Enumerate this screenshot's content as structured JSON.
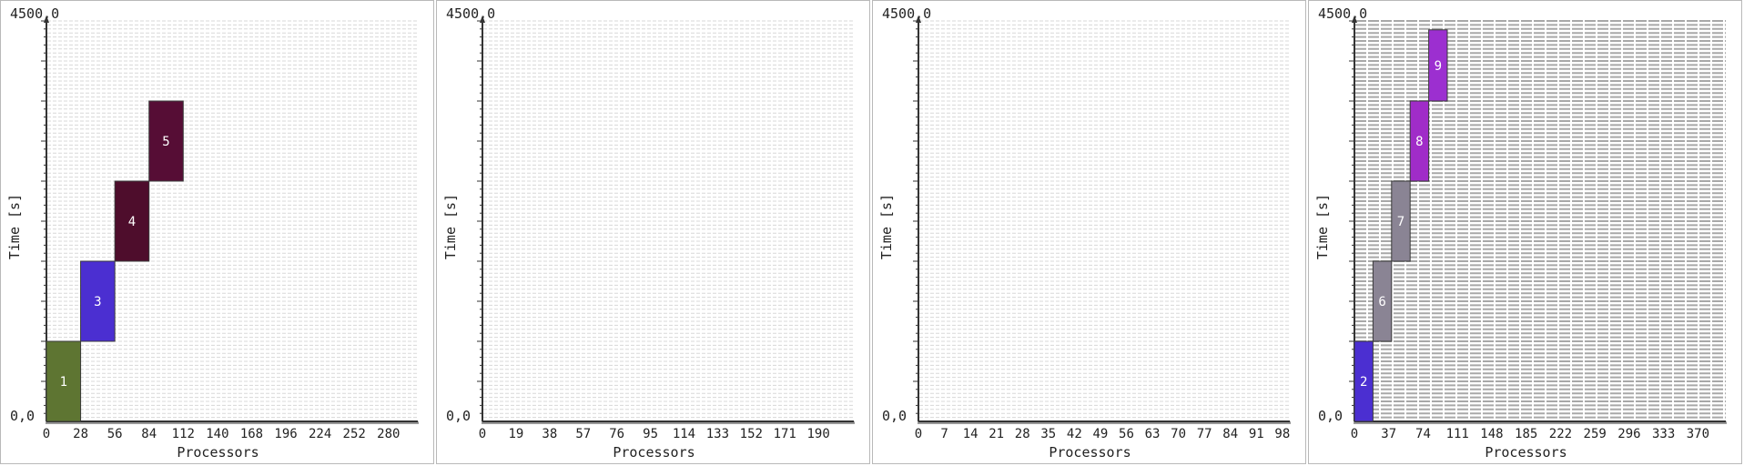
{
  "chart_data": [
    {
      "type": "bar",
      "chart_kind": "gantt",
      "ylabel": "Time [s]",
      "xlabel": "Processors",
      "ylim": [
        0,
        4500
      ],
      "ymax_label": "4500,0",
      "ymin_label": "0,0",
      "xlim": [
        0,
        304
      ],
      "xticks": [
        0,
        28,
        56,
        84,
        112,
        140,
        168,
        196,
        224,
        252,
        280
      ],
      "grid_style": "light-dashed",
      "jobs": [
        {
          "label": "1",
          "x0": 0,
          "x1": 28,
          "y0": 0,
          "y1": 900,
          "color": "#5e7532"
        },
        {
          "label": "3",
          "x0": 28,
          "x1": 56,
          "y0": 900,
          "y1": 1800,
          "color": "#4b2fd1"
        },
        {
          "label": "4",
          "x0": 56,
          "x1": 84,
          "y0": 1800,
          "y1": 2700,
          "color": "#4e0d2c"
        },
        {
          "label": "5",
          "x0": 84,
          "x1": 112,
          "y0": 2700,
          "y1": 3600,
          "color": "#560d35"
        }
      ]
    },
    {
      "type": "bar",
      "chart_kind": "gantt",
      "ylabel": "Time [s]",
      "xlabel": "Processors",
      "ylim": [
        0,
        4500
      ],
      "ymax_label": "4500,0",
      "ymin_label": "0,0",
      "xlim": [
        0,
        210
      ],
      "xticks": [
        0,
        19,
        38,
        57,
        76,
        95,
        114,
        133,
        152,
        171,
        190
      ],
      "grid_style": "light-dashed",
      "jobs": []
    },
    {
      "type": "bar",
      "chart_kind": "gantt",
      "ylabel": "Time [s]",
      "xlabel": "Processors",
      "ylim": [
        0,
        4500
      ],
      "ymax_label": "4500,0",
      "ymin_label": "0,0",
      "xlim": [
        0,
        100
      ],
      "xticks": [
        0,
        7,
        14,
        21,
        28,
        35,
        42,
        49,
        56,
        63,
        70,
        77,
        84,
        91,
        98
      ],
      "grid_style": "light-dashed",
      "jobs": []
    },
    {
      "type": "bar",
      "chart_kind": "gantt",
      "ylabel": "Time [s]",
      "xlabel": "Processors",
      "ylim": [
        0,
        4500
      ],
      "ymax_label": "4500,0",
      "ymin_label": "0,0",
      "xlim": [
        0,
        400
      ],
      "xticks": [
        0,
        37,
        74,
        111,
        148,
        185,
        222,
        259,
        296,
        333,
        370
      ],
      "grid_style": "dark-dashed",
      "jobs": [
        {
          "label": "2",
          "x0": 0,
          "x1": 20,
          "y0": 0,
          "y1": 900,
          "color": "#4b2fd1"
        },
        {
          "label": "6",
          "x0": 20,
          "x1": 40,
          "y0": 900,
          "y1": 1800,
          "color": "#8a8494"
        },
        {
          "label": "7",
          "x0": 40,
          "x1": 60,
          "y0": 1800,
          "y1": 2700,
          "color": "#8a8494"
        },
        {
          "label": "8",
          "x0": 60,
          "x1": 80,
          "y0": 2700,
          "y1": 3600,
          "color": "#a02cc8"
        },
        {
          "label": "9",
          "x0": 80,
          "x1": 100,
          "y0": 3600,
          "y1": 4400,
          "color": "#9c2fd0"
        }
      ]
    }
  ]
}
